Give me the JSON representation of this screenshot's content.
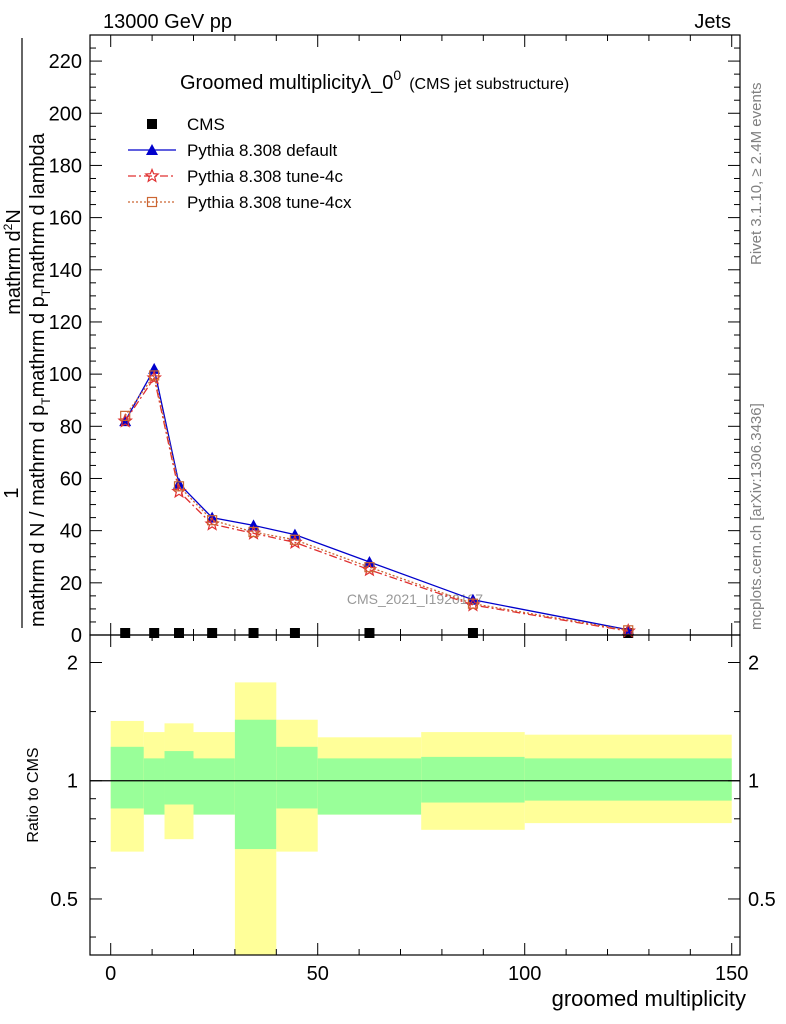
{
  "header": {
    "process": "13000 GeV pp",
    "category": "Jets"
  },
  "side_labels": {
    "rivet": "Rivet 3.1.10, ≥ 2.4M events",
    "mcplots": "mcplots.cern.ch [arXiv:1306.3436]"
  },
  "watermark": "CMS_2021_I1920187",
  "chart_data": [
    {
      "type": "line",
      "title": "Groomed multiplicityλ_0",
      "title_superscript": "0",
      "subtitle": "(CMS jet substructure)",
      "ylabel_line1": "1",
      "ylabel_num": "mathrm d",
      "ylabel_num_super": "2",
      "ylabel_num_tail": "N",
      "ylabel_den_a": "mathrm d N / mathrm d p",
      "ylabel_den_b": "mathrm d p",
      "ylabel_den_c": "mathrm d lambda",
      "ylabel_sub": "T",
      "ylim": [
        0,
        230
      ],
      "xlim": [
        -5,
        152
      ],
      "yticks": [
        0,
        20,
        40,
        60,
        80,
        100,
        120,
        140,
        160,
        180,
        200,
        220
      ],
      "legend_position": "top-left",
      "x": [
        3.5,
        10.5,
        16.5,
        24.5,
        34.5,
        44.5,
        62.5,
        87.5,
        125
      ],
      "series": [
        {
          "name": "CMS",
          "color": "#000000",
          "marker": "square",
          "values": [
            0,
            0,
            0,
            0,
            0,
            0,
            0,
            0,
            0
          ]
        },
        {
          "name": "Pythia 8.308 default",
          "color": "#0000cc",
          "marker": "triangle",
          "line": "solid",
          "values": [
            82,
            102,
            58,
            45,
            42,
            38.5,
            28,
            13.5,
            2
          ]
        },
        {
          "name": "Pythia 8.308 tune-4c",
          "color": "#e03030",
          "marker": "star",
          "line": "dashdot",
          "values": [
            82,
            98.5,
            55,
            42.5,
            39,
            35.5,
            25,
            11.5,
            1.5
          ]
        },
        {
          "name": "Pythia 8.308 tune-4cx",
          "color": "#cc6633",
          "marker": "open-square",
          "line": "dotted",
          "values": [
            84,
            99.5,
            57,
            44,
            39.5,
            36.5,
            26,
            12,
            1.8
          ]
        }
      ]
    },
    {
      "type": "area",
      "ylabel": "Ratio to CMS",
      "xlabel": "groomed multiplicity",
      "ylim": [
        0.36,
        2.35
      ],
      "y_scale": "log",
      "xlim": [
        -5,
        152
      ],
      "xticks": [
        0,
        50,
        100,
        150
      ],
      "yticks": [
        0.5,
        1,
        2
      ],
      "bands": [
        {
          "x0": 0,
          "x1": 8,
          "inner": [
            0.85,
            1.22
          ],
          "outer": [
            0.66,
            1.42
          ]
        },
        {
          "x0": 8,
          "x1": 13,
          "inner": [
            0.82,
            1.14
          ],
          "outer": [
            0.82,
            1.33
          ]
        },
        {
          "x0": 13,
          "x1": 20,
          "inner": [
            0.87,
            1.19
          ],
          "outer": [
            0.71,
            1.4
          ]
        },
        {
          "x0": 20,
          "x1": 30,
          "inner": [
            0.82,
            1.14
          ],
          "outer": [
            0.82,
            1.33
          ]
        },
        {
          "x0": 30,
          "x1": 40,
          "inner": [
            0.67,
            1.43
          ],
          "outer": [
            0.36,
            1.78
          ]
        },
        {
          "x0": 40,
          "x1": 50,
          "inner": [
            0.85,
            1.22
          ],
          "outer": [
            0.66,
            1.43
          ]
        },
        {
          "x0": 50,
          "x1": 75,
          "inner": [
            0.82,
            1.14
          ],
          "outer": [
            0.82,
            1.29
          ]
        },
        {
          "x0": 75,
          "x1": 100,
          "inner": [
            0.88,
            1.15
          ],
          "outer": [
            0.75,
            1.33
          ]
        },
        {
          "x0": 100,
          "x1": 150,
          "inner": [
            0.89,
            1.14
          ],
          "outer": [
            0.78,
            1.31
          ]
        }
      ],
      "inner_color": "#99ff99",
      "outer_color": "#ffff99"
    }
  ]
}
